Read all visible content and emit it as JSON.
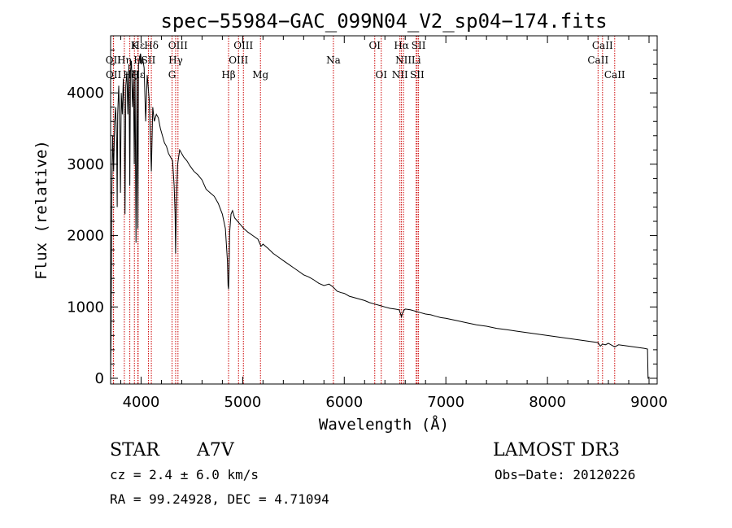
{
  "chart_data": {
    "type": "line",
    "title": "spec−55984−GAC_099N04_V2_sp04−174.fits",
    "xlabel": "Wavelength (Å)",
    "ylabel": "Flux (relative)",
    "xlim": [
      3700,
      9080
    ],
    "ylim": [
      -80,
      4800
    ],
    "xticks": [
      4000,
      5000,
      6000,
      7000,
      8000,
      9000
    ],
    "xtick_labels": [
      "4000",
      "5000",
      "6000",
      "7000",
      "8000",
      "9000"
    ],
    "yticks": [
      0,
      1000,
      2000,
      3000,
      4000
    ],
    "ytick_labels": [
      "0",
      "1000",
      "2000",
      "3000",
      "4000"
    ],
    "spectrum": {
      "name": "flux",
      "color": "#000000",
      "x": [
        3700,
        3705,
        3712,
        3720,
        3730,
        3740,
        3750,
        3760,
        3765,
        3770,
        3780,
        3790,
        3797,
        3805,
        3815,
        3825,
        3835,
        3842,
        3850,
        3860,
        3870,
        3880,
        3889,
        3895,
        3905,
        3915,
        3925,
        3933,
        3940,
        3950,
        3960,
        3968,
        3975,
        3985,
        3995,
        4005,
        4015,
        4030,
        4045,
        4060,
        4080,
        4101,
        4115,
        4130,
        4150,
        4170,
        4190,
        4210,
        4230,
        4250,
        4270,
        4290,
        4310,
        4325,
        4335,
        4340,
        4347,
        4360,
        4380,
        4400,
        4420,
        4450,
        4480,
        4520,
        4560,
        4600,
        4640,
        4680,
        4720,
        4760,
        4800,
        4830,
        4850,
        4856,
        4861,
        4866,
        4872,
        4885,
        4900,
        4920,
        4950,
        4980,
        5010,
        5050,
        5100,
        5150,
        5180,
        5200,
        5250,
        5300,
        5350,
        5400,
        5450,
        5500,
        5550,
        5600,
        5650,
        5700,
        5750,
        5800,
        5850,
        5890,
        5930,
        5970,
        6000,
        6050,
        6100,
        6150,
        6200,
        6250,
        6300,
        6350,
        6400,
        6450,
        6500,
        6540,
        6555,
        6563,
        6570,
        6585,
        6600,
        6650,
        6700,
        6750,
        6800,
        6850,
        6900,
        6950,
        7000,
        7100,
        7200,
        7300,
        7400,
        7500,
        7600,
        7700,
        7800,
        7900,
        8000,
        8100,
        8200,
        8300,
        8400,
        8498,
        8520,
        8542,
        8570,
        8600,
        8662,
        8700,
        8750,
        8800,
        8850,
        8900,
        8950,
        8985,
        8990,
        8995
      ],
      "y": [
        0,
        700,
        2600,
        3400,
        2900,
        3600,
        3800,
        3300,
        2400,
        3700,
        4100,
        3500,
        2600,
        4000,
        3700,
        4200,
        3600,
        2300,
        4100,
        4300,
        3700,
        4400,
        2700,
        4300,
        4450,
        3800,
        4200,
        3000,
        4300,
        1900,
        4300,
        2100,
        4400,
        4500,
        4550,
        4400,
        4500,
        4350,
        3600,
        4250,
        3900,
        2900,
        3800,
        3600,
        3700,
        3650,
        3500,
        3400,
        3300,
        3250,
        3150,
        3100,
        3050,
        2700,
        2300,
        1750,
        2400,
        3000,
        3200,
        3150,
        3100,
        3050,
        2980,
        2900,
        2850,
        2780,
        2650,
        2600,
        2550,
        2450,
        2300,
        2100,
        1650,
        1300,
        1250,
        1500,
        2050,
        2300,
        2350,
        2250,
        2200,
        2150,
        2100,
        2050,
        2000,
        1950,
        1850,
        1880,
        1820,
        1750,
        1700,
        1650,
        1600,
        1550,
        1500,
        1450,
        1420,
        1380,
        1330,
        1300,
        1320,
        1280,
        1220,
        1200,
        1190,
        1150,
        1130,
        1110,
        1090,
        1060,
        1040,
        1020,
        1000,
        980,
        970,
        960,
        900,
        860,
        900,
        950,
        970,
        960,
        940,
        920,
        900,
        890,
        870,
        850,
        840,
        810,
        780,
        750,
        730,
        700,
        680,
        660,
        640,
        620,
        600,
        580,
        560,
        540,
        520,
        500,
        450,
        480,
        470,
        490,
        440,
        470,
        460,
        450,
        440,
        430,
        420,
        410,
        0,
        0
      ]
    },
    "lines_color": "#cc0000",
    "lines_rows": [
      [
        {
          "label": "Hε",
          "wave": 3970
        },
        {
          "label": "K",
          "wave": 3934
        },
        {
          "label": "Hδ",
          "wave": 4101
        },
        {
          "label": "OIII",
          "wave": 4363
        },
        {
          "label": "OIII",
          "wave": 5007
        },
        {
          "label": "OI",
          "wave": 6300
        },
        {
          "label": "Hα",
          "wave": 6563
        },
        {
          "label": "SII",
          "wave": 6731
        },
        {
          "label": "CaII",
          "wave": 8542
        }
      ],
      [
        {
          "label": "OII",
          "wave": 3727
        },
        {
          "label": "Hη",
          "wave": 3835
        },
        {
          "label": "H",
          "wave": 3968
        },
        {
          "label": "SII",
          "wave": 4072
        },
        {
          "label": "Hγ",
          "wave": 4340
        },
        {
          "label": "OIII",
          "wave": 4959
        },
        {
          "label": "Na",
          "wave": 5893
        },
        {
          "label": "NII",
          "wave": 6583
        },
        {
          "label": "Li",
          "wave": 6708
        },
        {
          "label": "CaII",
          "wave": 8498
        }
      ],
      [
        {
          "label": "OII",
          "wave": 3729
        },
        {
          "label": "Hζ",
          "wave": 3889
        },
        {
          "label": "Hε",
          "wave": 3970
        },
        {
          "label": "G",
          "wave": 4305
        },
        {
          "label": "Hβ",
          "wave": 4861
        },
        {
          "label": "Mg",
          "wave": 5175
        },
        {
          "label": "OI",
          "wave": 6364
        },
        {
          "label": "NII",
          "wave": 6548
        },
        {
          "label": "SII",
          "wave": 6717
        },
        {
          "label": "CaII",
          "wave": 8662
        }
      ]
    ]
  },
  "info": {
    "object_class": "STAR",
    "subclass": "A7V",
    "survey": "LAMOST DR3",
    "cz": "cz = 2.4 ± 6.0 km/s",
    "obs_date": "Obs−Date: 20120226",
    "coords": "RA =  99.24928, DEC =   4.71094"
  }
}
